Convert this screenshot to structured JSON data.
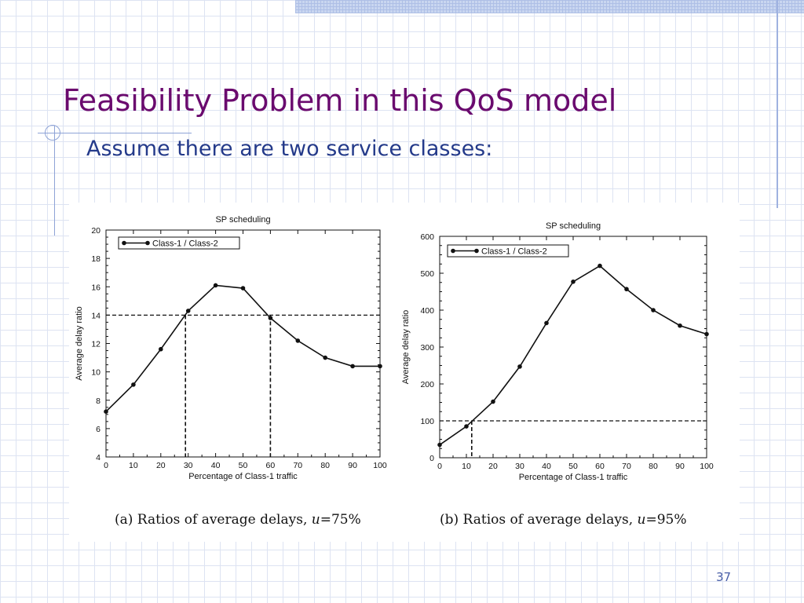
{
  "slide": {
    "title": "Feasibility Problem in this QoS model",
    "subtitle": "Assume there are two service classes:",
    "page_number": "37"
  },
  "chart_data": [
    {
      "type": "line",
      "title": "SP scheduling",
      "xlabel": "Percentage of Class-1 traffic",
      "ylabel": "Average delay ratio",
      "xlim": [
        0,
        100
      ],
      "ylim": [
        4,
        20
      ],
      "xticks": [
        0,
        10,
        20,
        30,
        40,
        50,
        60,
        70,
        80,
        90,
        100
      ],
      "yticks": [
        4,
        6,
        8,
        10,
        12,
        14,
        16,
        18,
        20
      ],
      "legend_position": "top-left",
      "series": [
        {
          "name": "Class-1 / Class-2",
          "x": [
            0,
            10,
            20,
            30,
            40,
            50,
            60,
            70,
            80,
            90,
            100
          ],
          "y": [
            7.2,
            9.1,
            11.6,
            14.3,
            16.1,
            15.9,
            13.8,
            12.2,
            11.0,
            10.4,
            10.4
          ]
        }
      ],
      "reference_lines": {
        "horizontal": 14,
        "vertical": [
          29,
          60
        ]
      },
      "caption": {
        "prefix": "(a) Ratios of average delays, ",
        "var": "u",
        "suffix": "=75%"
      }
    },
    {
      "type": "line",
      "title": "SP scheduling",
      "xlabel": "Percentage of Class-1 traffic",
      "ylabel": "Average delay ratio",
      "xlim": [
        0,
        100
      ],
      "ylim": [
        0,
        600
      ],
      "xticks": [
        0,
        10,
        20,
        30,
        40,
        50,
        60,
        70,
        80,
        90,
        100
      ],
      "yticks": [
        0,
        100,
        200,
        300,
        400,
        500,
        600
      ],
      "legend_position": "top-left",
      "series": [
        {
          "name": "Class-1 / Class-2",
          "x": [
            0,
            10,
            20,
            30,
            40,
            50,
            60,
            70,
            80,
            90,
            100
          ],
          "y": [
            35,
            85,
            152,
            247,
            365,
            477,
            520,
            457,
            400,
            358,
            335
          ]
        }
      ],
      "reference_lines": {
        "horizontal": 100,
        "vertical": [
          12
        ]
      },
      "caption": {
        "prefix": "(b) Ratios of average delays, ",
        "var": "u",
        "suffix": "=95%"
      }
    }
  ]
}
